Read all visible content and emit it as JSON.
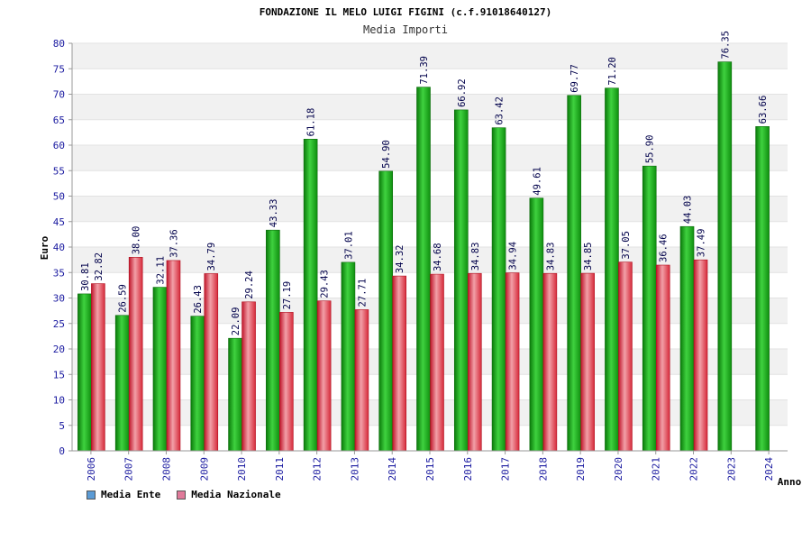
{
  "chart_data": {
    "type": "bar",
    "title": "FONDAZIONE IL MELO LUIGI FIGINI (c.f.91018640127)",
    "subtitle": "Media Importi",
    "xlabel": "Anno",
    "ylabel": "Euro",
    "ylim": [
      0,
      80
    ],
    "yticks": [
      0,
      5,
      10,
      15,
      20,
      25,
      30,
      35,
      40,
      45,
      50,
      55,
      60,
      65,
      70,
      75,
      80
    ],
    "grid": "horizontal bands",
    "legend_placement": "bottom-left",
    "categories": [
      "2006",
      "2007",
      "2008",
      "2009",
      "2010",
      "2011",
      "2012",
      "2013",
      "2014",
      "2015",
      "2016",
      "2017",
      "2018",
      "2019",
      "2020",
      "2021",
      "2022",
      "2023",
      "2024"
    ],
    "series": [
      {
        "name": "Media Ente",
        "values": [
          30.81,
          26.59,
          32.11,
          26.43,
          22.09,
          43.33,
          61.18,
          37.01,
          54.9,
          71.39,
          66.92,
          63.42,
          49.61,
          69.77,
          71.2,
          55.9,
          44.03,
          76.35,
          63.66
        ],
        "labels": [
          "30.81",
          "26.59",
          "32.11",
          "26.43",
          "22.09",
          "43.33",
          "61.18",
          "37.01",
          "54.90",
          "71.39",
          "66.92",
          "63.42",
          "49.61",
          "69.77",
          "71.20",
          "55.90",
          "44.03",
          "76.35",
          "63.66"
        ],
        "color": "#1aa21a",
        "legend_color": "#5b9bd5"
      },
      {
        "name": "Media Nazionale",
        "values": [
          32.82,
          38.0,
          37.36,
          34.79,
          29.24,
          27.19,
          29.43,
          27.71,
          34.32,
          34.68,
          34.83,
          34.94,
          34.83,
          34.85,
          37.05,
          36.46,
          37.49,
          null,
          null
        ],
        "labels": [
          "32.82",
          "38.00",
          "37.36",
          "34.79",
          "29.24",
          "27.19",
          "29.43",
          "27.71",
          "34.32",
          "34.68",
          "34.83",
          "34.94",
          "34.83",
          "34.85",
          "37.05",
          "36.46",
          "37.49",
          null,
          null
        ],
        "color": "#e0303c",
        "legend_color": "#e07a9a"
      }
    ]
  }
}
